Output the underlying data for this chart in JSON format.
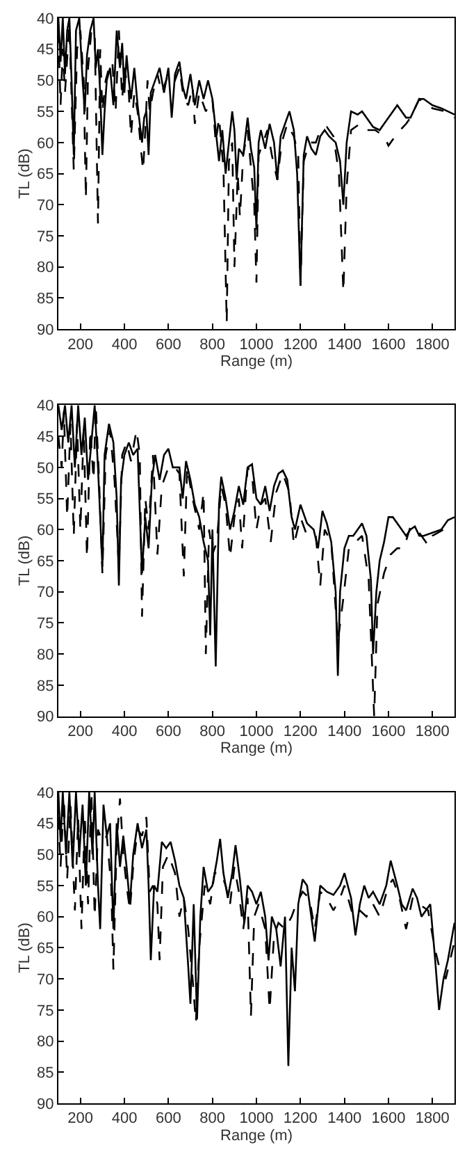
{
  "chart_data": [
    {
      "type": "line",
      "xlabel": "Range (m)",
      "ylabel": "TL (dB)",
      "xlim": [
        100,
        1900
      ],
      "ylim": [
        90,
        40
      ],
      "xticks": [
        200,
        400,
        600,
        800,
        1000,
        1200,
        1400,
        1600,
        1800
      ],
      "yticks": [
        40,
        45,
        50,
        55,
        60,
        65,
        70,
        75,
        80,
        85,
        90
      ],
      "marker": "none",
      "series": [
        {
          "color": "#000000",
          "line_style": "solid",
          "x": [
            100,
            110,
            120,
            130,
            140,
            150,
            160,
            170,
            180,
            195,
            210,
            220,
            230,
            245,
            260,
            270,
            280,
            290,
            300,
            310,
            320,
            335,
            350,
            365,
            380,
            390,
            400,
            410,
            420,
            430,
            445,
            460,
            470,
            480,
            490,
            500,
            510,
            520,
            540,
            560,
            580,
            600,
            615,
            630,
            650,
            665,
            680,
            700,
            720,
            740,
            760,
            780,
            800,
            815,
            830,
            845,
            860,
            875,
            890,
            900,
            910,
            920,
            940,
            960,
            975,
            990,
            1000,
            1010,
            1020,
            1040,
            1060,
            1080,
            1095,
            1110,
            1130,
            1150,
            1170,
            1185,
            1200,
            1215,
            1230,
            1250,
            1270,
            1290,
            1310,
            1330,
            1360,
            1380,
            1395,
            1410,
            1430,
            1460,
            1480,
            1500,
            1530,
            1560,
            1580,
            1620,
            1640,
            1680,
            1700,
            1740,
            1760,
            1800,
            1840,
            1870,
            1900
          ],
          "values": [
            40,
            47,
            40,
            49,
            42,
            40,
            50,
            62,
            42,
            40,
            50,
            55,
            46,
            42,
            40,
            48,
            45,
            52,
            62,
            55,
            50,
            48,
            54,
            42,
            48,
            44,
            52,
            46,
            50,
            53,
            48,
            54,
            57,
            60,
            56,
            55,
            62,
            52,
            50,
            48,
            52,
            48,
            56,
            49,
            47,
            51,
            53,
            49,
            54,
            50,
            53,
            50,
            53,
            58,
            63,
            58,
            65,
            60,
            55,
            58,
            66,
            61,
            62,
            56,
            61,
            64,
            74,
            60,
            58,
            61,
            57,
            60,
            66,
            59,
            57,
            55,
            58,
            65,
            83,
            62,
            59,
            61,
            62,
            59,
            58,
            59,
            60,
            63,
            70,
            60,
            55,
            55.5,
            55,
            56,
            57.5,
            58,
            57,
            55,
            54,
            56,
            56,
            53,
            53,
            54,
            54.5,
            55,
            55.5
          ]
        },
        {
          "color": "#000000",
          "line_style": "dashed",
          "x": [
            100,
            110,
            120,
            130,
            150,
            170,
            185,
            200,
            215,
            225,
            235,
            250,
            265,
            280,
            290,
            300,
            315,
            330,
            345,
            360,
            375,
            390,
            400,
            420,
            430,
            445,
            460,
            475,
            485,
            495,
            505,
            515,
            530,
            550,
            570,
            600,
            630,
            650,
            670,
            690,
            710,
            720,
            740,
            770,
            800,
            815,
            830,
            850,
            865,
            875,
            890,
            900,
            915,
            925,
            940,
            960,
            975,
            990,
            1000,
            1010,
            1030,
            1050,
            1070,
            1095,
            1115,
            1140,
            1170,
            1190,
            1200,
            1215,
            1240,
            1270,
            1290,
            1320,
            1350,
            1375,
            1395,
            1410,
            1430,
            1470,
            1500,
            1540,
            1580,
            1600,
            1640,
            1680,
            1700,
            1740,
            1800,
            1860,
            1900
          ],
          "values": [
            42,
            54,
            45,
            52,
            41,
            64.5,
            45,
            42,
            50,
            69,
            48,
            42,
            42,
            73,
            45,
            55,
            50,
            48,
            47,
            55,
            42,
            53,
            48,
            52,
            59,
            52,
            55,
            61,
            64.5,
            58,
            50,
            55,
            52,
            49,
            52,
            49,
            50,
            48,
            53,
            54,
            51,
            57,
            52,
            55,
            53,
            60,
            56,
            64,
            89,
            63,
            60,
            80,
            65,
            72,
            62,
            58,
            64,
            70,
            82.5,
            62,
            60,
            58,
            62,
            66,
            60,
            57,
            59,
            62,
            83,
            63,
            60,
            60,
            58,
            57.5,
            59,
            65,
            84,
            67,
            58,
            57,
            58,
            58,
            59,
            60.5,
            58.5,
            57,
            56,
            53,
            54.5,
            55,
            56
          ]
        }
      ]
    },
    {
      "type": "line",
      "xlabel": "Range (m)",
      "ylabel": "TL (dB)",
      "xlim": [
        100,
        1900
      ],
      "ylim": [
        90,
        40
      ],
      "xticks": [
        200,
        400,
        600,
        800,
        1000,
        1200,
        1400,
        1600,
        1800
      ],
      "yticks": [
        40,
        45,
        50,
        55,
        60,
        65,
        70,
        75,
        80,
        85,
        90
      ],
      "marker": "none",
      "series": [
        {
          "color": "#000000",
          "line_style": "solid",
          "x": [
            100,
            115,
            130,
            145,
            160,
            175,
            190,
            205,
            220,
            235,
            250,
            265,
            280,
            300,
            310,
            330,
            350,
            365,
            375,
            385,
            400,
            420,
            440,
            460,
            480,
            495,
            510,
            525,
            540,
            560,
            580,
            600,
            620,
            650,
            665,
            680,
            700,
            720,
            740,
            760,
            780,
            790,
            800,
            815,
            830,
            840,
            860,
            880,
            900,
            920,
            940,
            960,
            980,
            1000,
            1020,
            1040,
            1060,
            1080,
            1100,
            1120,
            1140,
            1160,
            1175,
            1200,
            1230,
            1260,
            1280,
            1300,
            1320,
            1340,
            1360,
            1370,
            1380,
            1400,
            1420,
            1440,
            1460,
            1480,
            1500,
            1520,
            1530,
            1545,
            1560,
            1580,
            1600,
            1620,
            1660,
            1680,
            1700,
            1720,
            1740,
            1760,
            1800,
            1840,
            1870,
            1900
          ],
          "values": [
            40,
            44,
            40,
            46,
            40,
            50,
            40,
            48,
            42,
            52,
            46,
            40,
            50,
            66,
            48,
            43,
            46,
            55,
            69,
            52,
            48,
            46,
            48,
            47,
            67,
            58,
            63,
            52,
            48,
            52,
            48,
            47,
            50,
            50,
            55,
            49,
            52,
            56,
            58,
            62,
            65,
            77,
            60,
            82,
            56,
            51.5,
            55,
            60,
            57,
            53,
            56,
            50,
            49.5,
            55,
            56,
            53,
            57,
            53,
            51,
            50.5,
            52,
            58,
            60,
            56,
            59,
            60,
            63,
            57,
            59,
            62,
            70,
            83.5,
            70,
            63,
            61,
            61,
            60,
            59,
            61,
            68,
            80,
            70,
            65,
            62,
            58,
            58,
            60,
            61,
            60,
            59.5,
            61,
            61,
            60.5,
            60,
            58.5,
            58
          ]
        },
        {
          "color": "#000000",
          "line_style": "dashed",
          "x": [
            100,
            115,
            125,
            140,
            155,
            170,
            185,
            200,
            215,
            230,
            245,
            260,
            270,
            285,
            300,
            315,
            335,
            355,
            375,
            390,
            410,
            430,
            455,
            470,
            480,
            495,
            510,
            530,
            550,
            570,
            600,
            630,
            650,
            670,
            685,
            710,
            740,
            760,
            770,
            785,
            800,
            820,
            840,
            860,
            880,
            900,
            920,
            935,
            960,
            980,
            1000,
            1020,
            1040,
            1065,
            1090,
            1120,
            1150,
            1170,
            1200,
            1230,
            1270,
            1290,
            1310,
            1340,
            1370,
            1395,
            1420,
            1450,
            1480,
            1510,
            1535,
            1550,
            1580,
            1610,
            1640,
            1670,
            1700,
            1740,
            1780,
            1800,
            1850,
            1900
          ],
          "values": [
            45,
            50,
            41,
            58,
            43,
            61,
            43,
            60,
            44,
            64.5,
            44,
            52,
            40,
            52,
            67,
            48,
            44,
            52,
            66,
            48,
            46,
            49,
            44,
            48,
            74,
            55,
            60,
            48,
            64,
            53,
            50,
            50,
            51,
            67.5,
            50,
            55,
            60,
            54,
            80,
            60,
            64,
            62,
            53,
            56,
            64.5,
            58,
            55,
            63,
            50,
            51,
            60,
            56,
            55,
            62,
            54,
            51,
            54,
            62.5,
            58,
            61,
            61,
            69,
            60,
            62,
            78,
            71,
            63,
            62,
            61,
            68,
            90,
            72,
            67,
            64,
            63,
            63,
            59.5,
            60.5,
            62.5,
            61,
            60,
            59.5
          ]
        }
      ]
    },
    {
      "type": "line",
      "xlabel": "Range (m)",
      "ylabel": "TL (dB)",
      "xlim": [
        100,
        1900
      ],
      "ylim": [
        90,
        40
      ],
      "xticks": [
        200,
        400,
        600,
        800,
        1000,
        1200,
        1400,
        1600,
        1800
      ],
      "yticks": [
        40,
        45,
        50,
        55,
        60,
        65,
        70,
        75,
        80,
        85,
        90
      ],
      "marker": "none",
      "series": [
        {
          "color": "#000000",
          "line_style": "solid",
          "x": [
            100,
            110,
            120,
            135,
            150,
            165,
            180,
            195,
            210,
            225,
            240,
            255,
            265,
            280,
            290,
            305,
            320,
            335,
            350,
            365,
            380,
            395,
            410,
            425,
            440,
            460,
            480,
            500,
            510,
            520,
            535,
            550,
            570,
            590,
            610,
            630,
            650,
            670,
            690,
            700,
            715,
            730,
            745,
            760,
            780,
            800,
            820,
            835,
            850,
            870,
            890,
            905,
            925,
            945,
            960,
            980,
            1000,
            1020,
            1040,
            1055,
            1070,
            1090,
            1110,
            1130,
            1145,
            1160,
            1175,
            1190,
            1210,
            1230,
            1265,
            1290,
            1320,
            1350,
            1380,
            1400,
            1430,
            1450,
            1470,
            1490,
            1510,
            1530,
            1560,
            1590,
            1610,
            1640,
            1660,
            1680,
            1710,
            1730,
            1750,
            1790,
            1810,
            1830,
            1850,
            1870,
            1900
          ],
          "values": [
            40,
            48,
            40,
            50,
            40,
            52,
            40,
            50,
            42,
            55,
            40,
            50,
            40,
            55,
            62,
            42,
            47,
            45,
            62,
            45,
            52,
            47,
            52,
            58,
            50,
            45,
            49,
            46,
            55,
            67,
            55,
            56,
            48,
            49,
            48,
            51,
            55,
            57,
            68,
            74,
            58,
            76.5,
            60,
            52,
            56,
            55,
            51,
            47.5,
            53,
            57,
            53,
            48.5,
            54,
            61,
            55,
            56,
            58,
            56,
            60,
            67,
            60,
            62,
            68,
            60,
            84,
            65,
            72,
            58,
            54,
            55,
            64,
            55,
            56,
            56.5,
            55,
            53,
            57,
            63,
            58,
            55,
            57,
            56,
            58,
            55,
            51,
            55,
            58,
            59,
            55.5,
            57,
            60,
            58,
            66,
            75,
            70,
            67,
            61
          ]
        },
        {
          "color": "#000000",
          "line_style": "dashed",
          "x": [
            100,
            110,
            125,
            140,
            155,
            175,
            190,
            205,
            220,
            235,
            250,
            265,
            280,
            300,
            320,
            340,
            350,
            365,
            380,
            395,
            410,
            425,
            440,
            460,
            480,
            500,
            515,
            530,
            550,
            560,
            575,
            600,
            630,
            650,
            670,
            690,
            710,
            725,
            740,
            765,
            790,
            810,
            840,
            860,
            880,
            900,
            920,
            940,
            960,
            975,
            990,
            1010,
            1040,
            1060,
            1080,
            1100,
            1130,
            1160,
            1180,
            1210,
            1240,
            1265,
            1290,
            1320,
            1350,
            1380,
            1400,
            1440,
            1470,
            1500,
            1530,
            1560,
            1600,
            1620,
            1650,
            1680,
            1710,
            1740,
            1780,
            1810,
            1830,
            1860,
            1880,
            1900
          ],
          "values": [
            44,
            52,
            41,
            54,
            42,
            59,
            44,
            62,
            44,
            58,
            40,
            60,
            46,
            48,
            47,
            55,
            68.5,
            48,
            41,
            50,
            55,
            59,
            52,
            46,
            47,
            44,
            56,
            55,
            58,
            67,
            52,
            50,
            53,
            60,
            57,
            62,
            70,
            77,
            65,
            55,
            58,
            53,
            53,
            55,
            58,
            52,
            56,
            62,
            57,
            76,
            60,
            58,
            62,
            75,
            63,
            61,
            62,
            60,
            58,
            56,
            57,
            62,
            56,
            57,
            59,
            57,
            55,
            60,
            59,
            60,
            58,
            60,
            55,
            54,
            57,
            62,
            57,
            58,
            59,
            65,
            68,
            70,
            67,
            64
          ]
        }
      ]
    }
  ]
}
